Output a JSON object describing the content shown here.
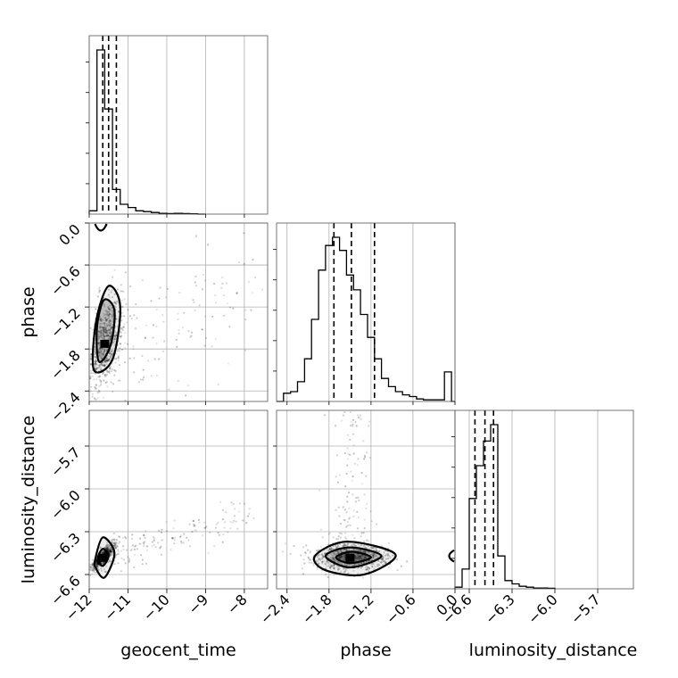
{
  "chart_data": {
    "type": "corner",
    "parameters": [
      "geocent_time",
      "phase",
      "luminosity_distance"
    ],
    "axis_labels": {
      "geocent_time": "geocent_time",
      "phase": "phase",
      "luminosity_distance": "luminosity_distance"
    },
    "ranges": {
      "geocent_time": [
        -12.0,
        -7.4
      ],
      "phase": [
        -2.55,
        0.0
      ],
      "luminosity_distance": [
        -6.7,
        -5.45
      ]
    },
    "ticks": {
      "geocent_time": [
        -12,
        -11,
        -10,
        -9,
        -8
      ],
      "phase": [
        -2.4,
        -1.8,
        -1.2,
        -0.6,
        0.0
      ],
      "luminosity_distance": [
        -6.6,
        -6.3,
        -6.0,
        -5.7
      ]
    },
    "tick_labels": {
      "geocent_time": [
        "−12",
        "−11",
        "−10",
        "−9",
        "−8"
      ],
      "phase": [
        "−2.4",
        "−1.8",
        "−1.2",
        "−0.6",
        "0.0"
      ],
      "luminosity_distance": [
        "−6.6",
        "−6.3",
        "−6.0",
        "−5.7"
      ]
    },
    "quantiles": {
      "geocent_time": [
        -11.65,
        -11.5,
        -11.3
      ],
      "phase": [
        -1.73,
        -1.48,
        -1.15
      ],
      "luminosity_distance": [
        -6.56,
        -6.49,
        -6.43
      ]
    },
    "histograms": {
      "geocent_time": {
        "bin_edges": [
          -12.0,
          -11.8,
          -11.6,
          -11.4,
          -11.2,
          -11.0,
          -10.8,
          -10.6,
          -10.4,
          -10.2,
          -10.0,
          -9.8,
          -9.6,
          -9.4,
          -9.2,
          -9.0
        ],
        "counts": [
          2,
          100,
          64,
          15,
          6,
          4,
          2,
          1.5,
          1,
          0.5,
          0.3,
          0.5,
          0.3,
          0.2,
          0
        ]
      },
      "phase": {
        "bin_edges": [
          -2.55,
          -2.45,
          -2.35,
          -2.25,
          -2.15,
          -2.05,
          -1.95,
          -1.85,
          -1.75,
          -1.65,
          -1.55,
          -1.45,
          -1.35,
          -1.25,
          -1.15,
          -1.05,
          -0.95,
          -0.85,
          -0.75,
          -0.65,
          -0.55,
          -0.45,
          -0.35,
          -0.25,
          -0.15,
          -0.05,
          0.0
        ],
        "counts": [
          0,
          5,
          6,
          12,
          26,
          50,
          80,
          95,
          100,
          92,
          77,
          68,
          53,
          39,
          26,
          14,
          9,
          6,
          4,
          3,
          1.5,
          1,
          1,
          1,
          18,
          0
        ]
      },
      "luminosity_distance": {
        "bin_edges": [
          -6.7,
          -6.65,
          -6.6,
          -6.55,
          -6.5,
          -6.45,
          -6.4,
          -6.35,
          -6.3,
          -6.25,
          -6.2,
          -6.15,
          -6.1,
          -6.05,
          -6.0
        ],
        "counts": [
          1,
          12,
          55,
          75,
          90,
          100,
          20,
          5,
          3,
          1.5,
          1,
          0.5,
          0.5,
          0.3
        ]
      }
    },
    "density_2d": [
      {
        "x": "geocent_time",
        "y": "phase",
        "peak": [
          -11.6,
          -1.72
        ],
        "spread": [
          0.22,
          0.32
        ],
        "correlation": 0.45,
        "tail_direction": [
          1.0,
          0.35
        ],
        "contours": [
          [
            [
              -11.88,
              -2.1
            ],
            [
              -11.4,
              -1.95
            ],
            [
              -11.2,
              -1.2
            ],
            [
              -11.5,
              -0.9
            ],
            [
              -11.82,
              -1.4
            ]
          ],
          [
            [
              -11.75,
              -1.98
            ],
            [
              -11.45,
              -1.75
            ],
            [
              -11.35,
              -1.25
            ],
            [
              -11.62,
              -1.1
            ],
            [
              -11.8,
              -1.5
            ]
          ]
        ],
        "extra_contour": [
          [
            -11.85,
            0.0
          ],
          [
            -11.55,
            0.0
          ]
        ]
      },
      {
        "x": "geocent_time",
        "y": "luminosity_distance",
        "peak": [
          -11.65,
          -6.48
        ],
        "spread": [
          0.15,
          0.045
        ],
        "correlation": 0.85,
        "tail_direction": [
          1.0,
          0.3
        ],
        "contours": [
          [
            [
              -11.85,
              -6.5
            ],
            [
              -11.65,
              -6.34
            ],
            [
              -11.35,
              -6.45
            ],
            [
              -11.6,
              -6.62
            ],
            [
              -11.82,
              -6.56
            ]
          ],
          [
            [
              -11.78,
              -6.49
            ],
            [
              -11.65,
              -6.42
            ],
            [
              -11.5,
              -6.47
            ],
            [
              -11.65,
              -6.54
            ]
          ]
        ]
      },
      {
        "x": "phase",
        "y": "luminosity_distance",
        "peak": [
          -1.5,
          -6.48
        ],
        "spread": [
          0.28,
          0.045
        ],
        "correlation": 0.05,
        "tail_direction": [
          0.0,
          1.0
        ],
        "contours": [
          [
            [
              -2.0,
              -6.47
            ],
            [
              -1.55,
              -6.37
            ],
            [
              -0.85,
              -6.46
            ],
            [
              -1.3,
              -6.6
            ],
            [
              -1.85,
              -6.57
            ]
          ],
          [
            [
              -1.85,
              -6.47
            ],
            [
              -1.5,
              -6.41
            ],
            [
              -1.05,
              -6.47
            ],
            [
              -1.5,
              -6.55
            ]
          ],
          [
            [
              -1.7,
              -6.48
            ],
            [
              -1.48,
              -6.44
            ],
            [
              -1.2,
              -6.48
            ],
            [
              -1.5,
              -6.52
            ]
          ]
        ],
        "extra_contour": [
          [
            0.0,
            -6.43
          ],
          [
            0.0,
            -6.51
          ]
        ]
      }
    ],
    "grid": true
  }
}
